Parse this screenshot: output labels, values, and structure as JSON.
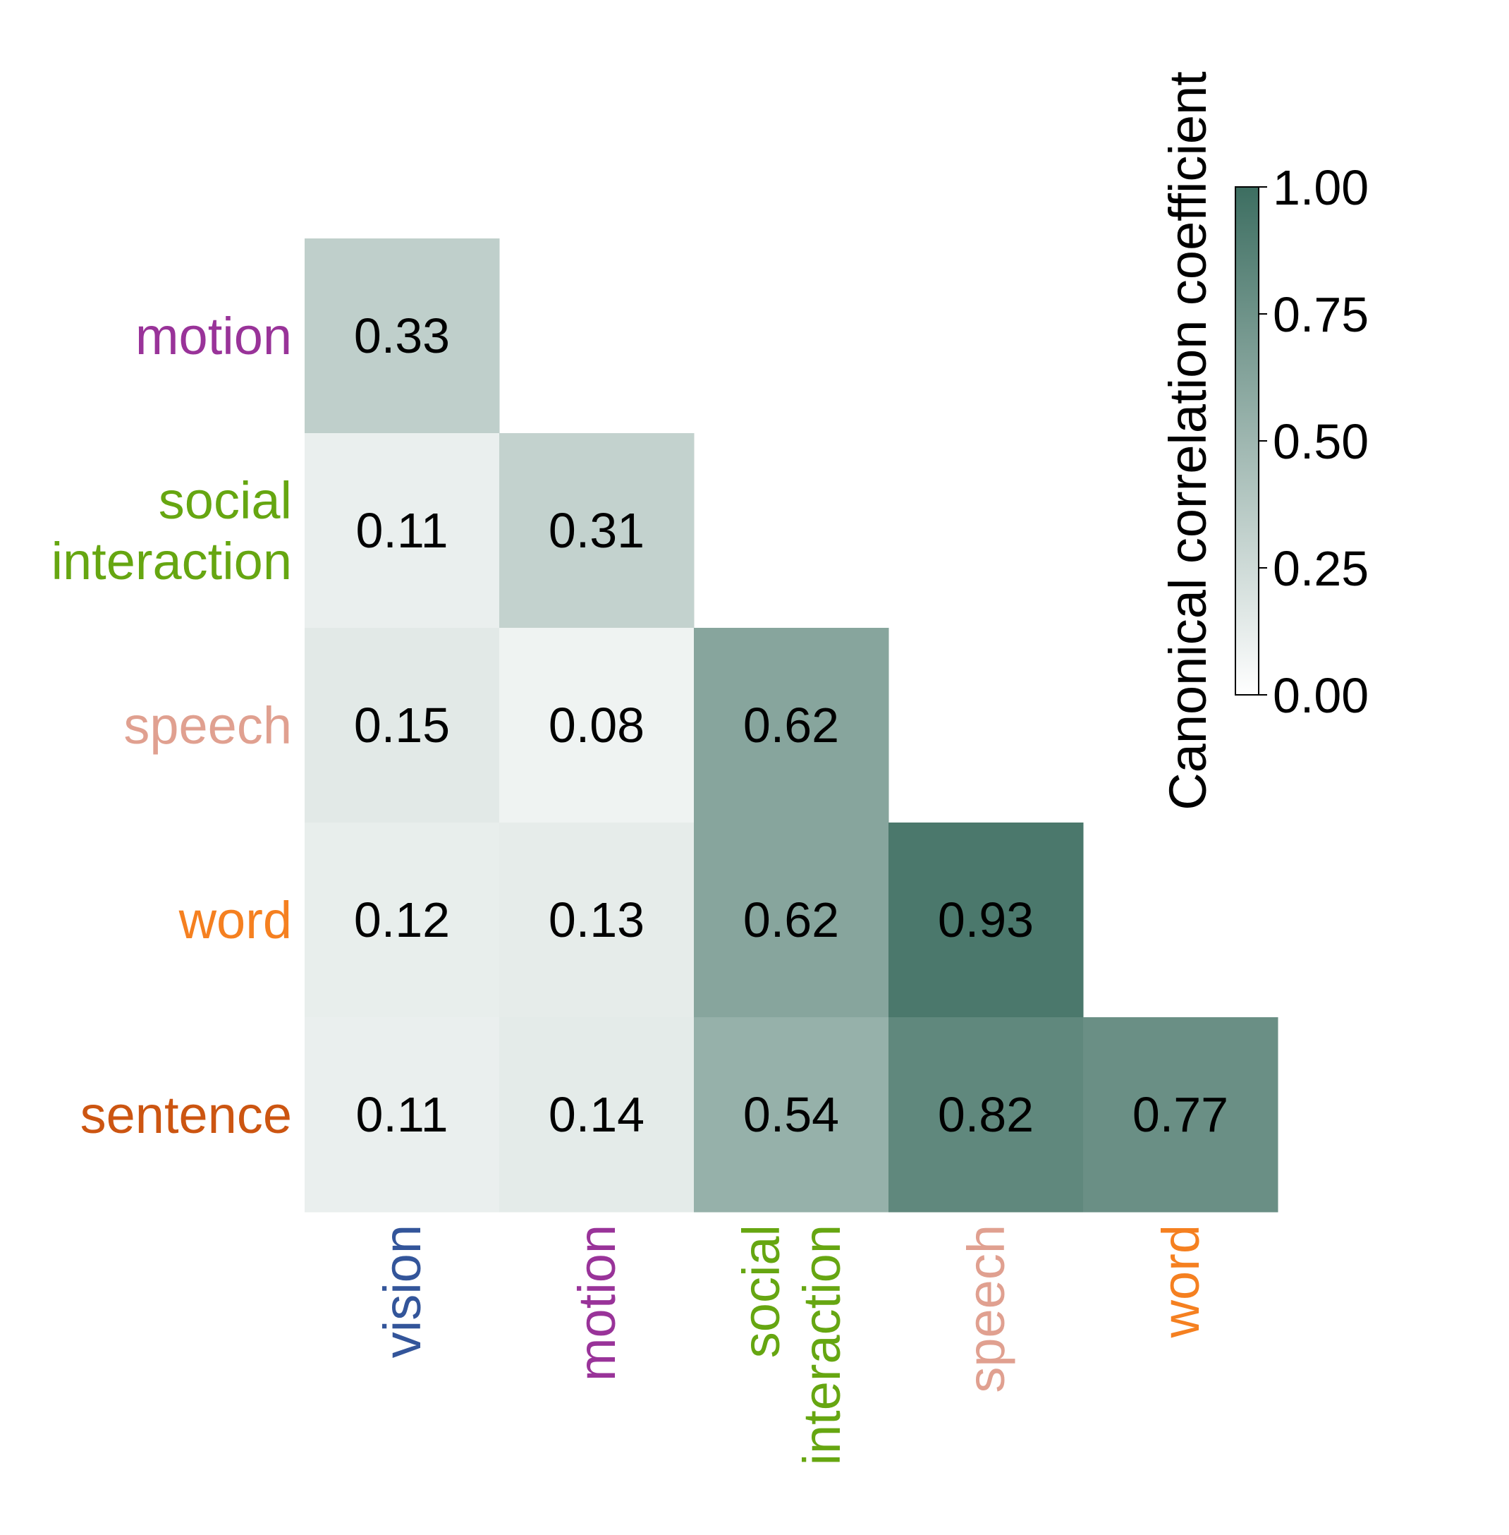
{
  "chart_data": {
    "type": "heatmap",
    "title": "",
    "row_labels": [
      {
        "text": "motion",
        "color": "#993399"
      },
      {
        "text": "social\ninteraction",
        "color": "#66a611"
      },
      {
        "text": "speech",
        "color": "#e0a090"
      },
      {
        "text": "word",
        "color": "#f58020"
      },
      {
        "text": "sentence",
        "color": "#cc5511"
      }
    ],
    "col_labels": [
      {
        "text": "vision",
        "color": "#33559a"
      },
      {
        "text": "motion",
        "color": "#993399"
      },
      {
        "text": "social\ninteraction",
        "color": "#66a611"
      },
      {
        "text": "speech",
        "color": "#e0a090"
      },
      {
        "text": "word",
        "color": "#f58020"
      }
    ],
    "values": [
      [
        0.33,
        null,
        null,
        null,
        null
      ],
      [
        0.11,
        0.31,
        null,
        null,
        null
      ],
      [
        0.15,
        0.08,
        0.62,
        null,
        null
      ],
      [
        0.12,
        0.13,
        0.62,
        0.93,
        null
      ],
      [
        0.11,
        0.14,
        0.54,
        0.82,
        0.77
      ]
    ],
    "value_labels": [
      [
        "0.33",
        "",
        "",
        "",
        ""
      ],
      [
        "0.11",
        "0.31",
        "",
        "",
        ""
      ],
      [
        "0.15",
        "0.08",
        "0.62",
        "",
        ""
      ],
      [
        "0.12",
        "0.13",
        "0.62",
        "0.93",
        ""
      ],
      [
        "0.11",
        "0.14",
        "0.54",
        "0.82",
        "0.77"
      ]
    ],
    "colorbar": {
      "label": "Canonical correlation coefficient",
      "range": [
        0,
        1
      ],
      "ticks": [
        0,
        0.25,
        0.5,
        0.75,
        1
      ],
      "tick_labels": [
        "0.00",
        "0.25",
        "0.50",
        "0.75",
        "1.00"
      ],
      "color_low": "#ffffff",
      "color_high": "#3d6e61"
    }
  }
}
